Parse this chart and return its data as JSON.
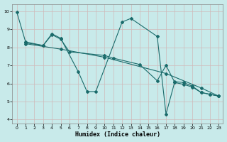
{
  "xlabel": "Humidex (Indice chaleur)",
  "bg_color": "#c8eaea",
  "grid_color": "#b8d8d8",
  "line_color": "#1a6b6b",
  "xlim": [
    -0.5,
    23.5
  ],
  "ylim": [
    3.8,
    10.4
  ],
  "xticks": [
    0,
    1,
    2,
    3,
    4,
    5,
    6,
    7,
    8,
    9,
    10,
    11,
    12,
    13,
    14,
    15,
    16,
    17,
    18,
    19,
    20,
    21,
    22,
    23
  ],
  "yticks": [
    4,
    5,
    6,
    7,
    8,
    9,
    10
  ],
  "line1_x": [
    0,
    1,
    3,
    4,
    5,
    7,
    8,
    9,
    12,
    13,
    16,
    17,
    18,
    19,
    20,
    21,
    22,
    23
  ],
  "line1_y": [
    9.95,
    8.3,
    8.1,
    8.75,
    8.5,
    6.65,
    5.55,
    5.55,
    9.4,
    9.6,
    8.6,
    4.3,
    6.1,
    6.05,
    5.85,
    5.5,
    5.4,
    5.3
  ],
  "line2_x": [
    1,
    3,
    4,
    5,
    6,
    10,
    11,
    14,
    16,
    17,
    18,
    19,
    20,
    21,
    22,
    23
  ],
  "line2_y": [
    8.25,
    8.1,
    8.7,
    8.45,
    7.75,
    7.55,
    7.4,
    7.05,
    6.15,
    7.0,
    6.05,
    5.95,
    5.8,
    5.5,
    5.4,
    5.3
  ],
  "line3_x": [
    1,
    5,
    10,
    17,
    21,
    23
  ],
  "line3_y": [
    8.2,
    7.9,
    7.45,
    6.55,
    5.75,
    5.3
  ]
}
